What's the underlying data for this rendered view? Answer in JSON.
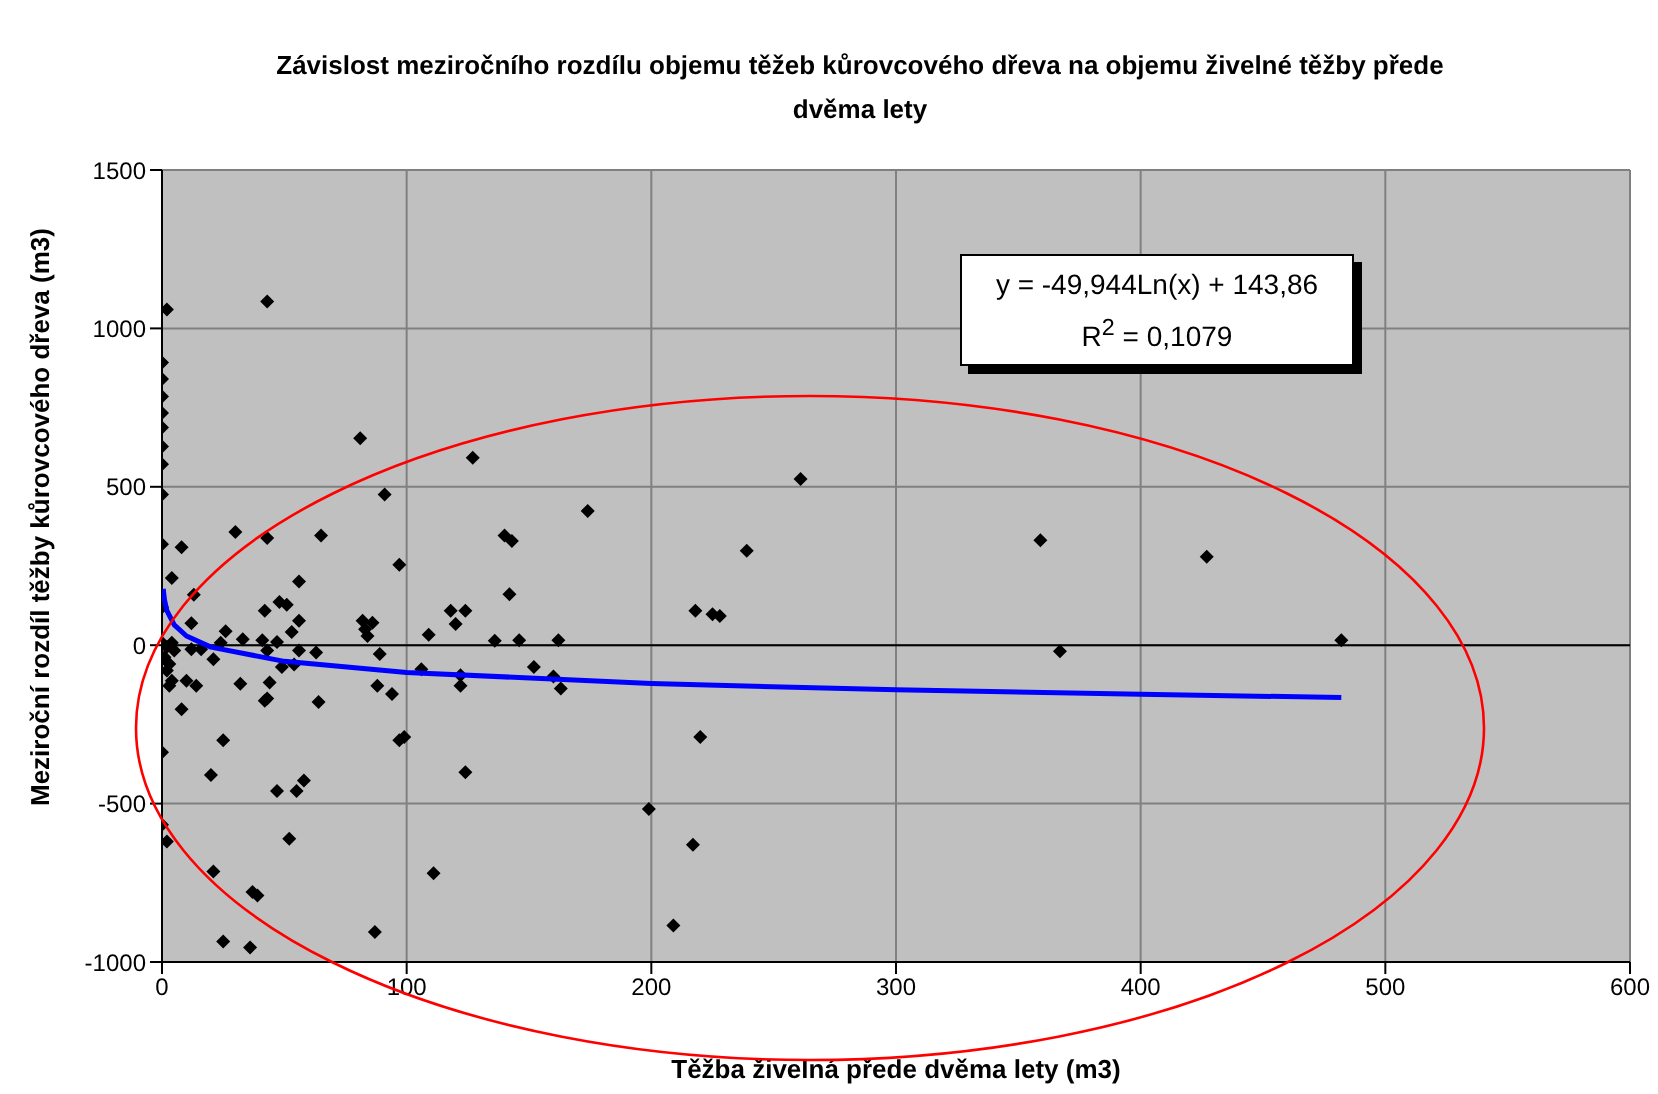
{
  "chart_data": {
    "type": "scatter",
    "title": "Závislost meziročního rozdílu objemu těžeb kůrovcového dřeva na objemu živelné těžby přede dvěma lety",
    "xlabel": "Těžba živelná přede dvěma lety (m3)",
    "ylabel": "Meziroční rozdíl těžby kůrovcového dřeva (m3)",
    "annotations": [
      "y = -49,944Ln(x) + 143,86",
      "R$^{2}$ = 0,1079"
    ],
    "xlim": [
      0,
      600
    ],
    "xticks": [
      0,
      100,
      200,
      300,
      400,
      500,
      600
    ],
    "ylim": [
      -1000,
      1500
    ],
    "yticks": [
      -1000,
      -500,
      0,
      500,
      1000,
      1500
    ],
    "grid": true,
    "legend": false,
    "ref_lines": [
      {
        "axis": "y",
        "value": 0,
        "color": "#000000"
      }
    ],
    "series": [
      {
        "type": "scatter",
        "color": "#000000",
        "marker": "diamond",
        "x": [
          2,
          43,
          0,
          0,
          0,
          0,
          0,
          0,
          0,
          0,
          0,
          0,
          81,
          127,
          91,
          30,
          43,
          65,
          8,
          97,
          4,
          56,
          13,
          48,
          51,
          42,
          118,
          124,
          120,
          12,
          56,
          82,
          86,
          83,
          84,
          26,
          53,
          109,
          33,
          41,
          47,
          24,
          0,
          4,
          136,
          2,
          5,
          1,
          3,
          2,
          4,
          3,
          12,
          16,
          21,
          43,
          49,
          54,
          56,
          63,
          89,
          106,
          122,
          122,
          88,
          94,
          10,
          14,
          32,
          44,
          43,
          42,
          8,
          64,
          25,
          97,
          99,
          0,
          20,
          124,
          47,
          55,
          58,
          0,
          2,
          52,
          21,
          111,
          37,
          39,
          87,
          25,
          36,
          174,
          140,
          143,
          142,
          146,
          162,
          152,
          160,
          163,
          261,
          239,
          218,
          225,
          228,
          220,
          199,
          217,
          209,
          359,
          367,
          427,
          482
        ],
        "values": [
          1060,
          1085,
          892,
          840,
          785,
          733,
          687,
          627,
          571,
          476,
          319,
          120,
          653,
          592,
          476,
          357,
          338,
          346,
          309,
          254,
          212,
          201,
          159,
          136,
          128,
          109,
          109,
          109,
          67,
          69,
          77,
          77,
          71,
          50,
          29,
          44,
          42,
          33,
          19,
          16,
          10,
          8,
          8,
          8,
          14,
          -6,
          -17,
          -38,
          -59,
          -80,
          -112,
          -128,
          -13,
          -13,
          -44,
          -17,
          -69,
          -61,
          -17,
          -23,
          -28,
          -76,
          -95,
          -128,
          -128,
          -154,
          -112,
          -128,
          -122,
          -118,
          -168,
          -175,
          -202,
          -179,
          -300,
          -300,
          -290,
          -338,
          -410,
          -401,
          -460,
          -460,
          -427,
          -567,
          -620,
          -611,
          -714,
          -720,
          -779,
          -790,
          -905,
          -935,
          -954,
          424,
          346,
          329,
          161,
          16,
          16,
          -69,
          -99,
          -137,
          525,
          298,
          109,
          98,
          92,
          -290,
          -517,
          -630,
          -885,
          331,
          -19,
          279,
          16
        ]
      },
      {
        "type": "line",
        "color": "#0000ff",
        "marker": "none",
        "line_style": "solid",
        "x": [
          0.5,
          1,
          2,
          5,
          10,
          20,
          50,
          100,
          200,
          300,
          400,
          482
        ],
        "values": [
          178,
          144,
          109,
          64,
          29,
          -6,
          -51,
          -86,
          -121,
          -141,
          -155,
          -165
        ]
      }
    ]
  }
}
